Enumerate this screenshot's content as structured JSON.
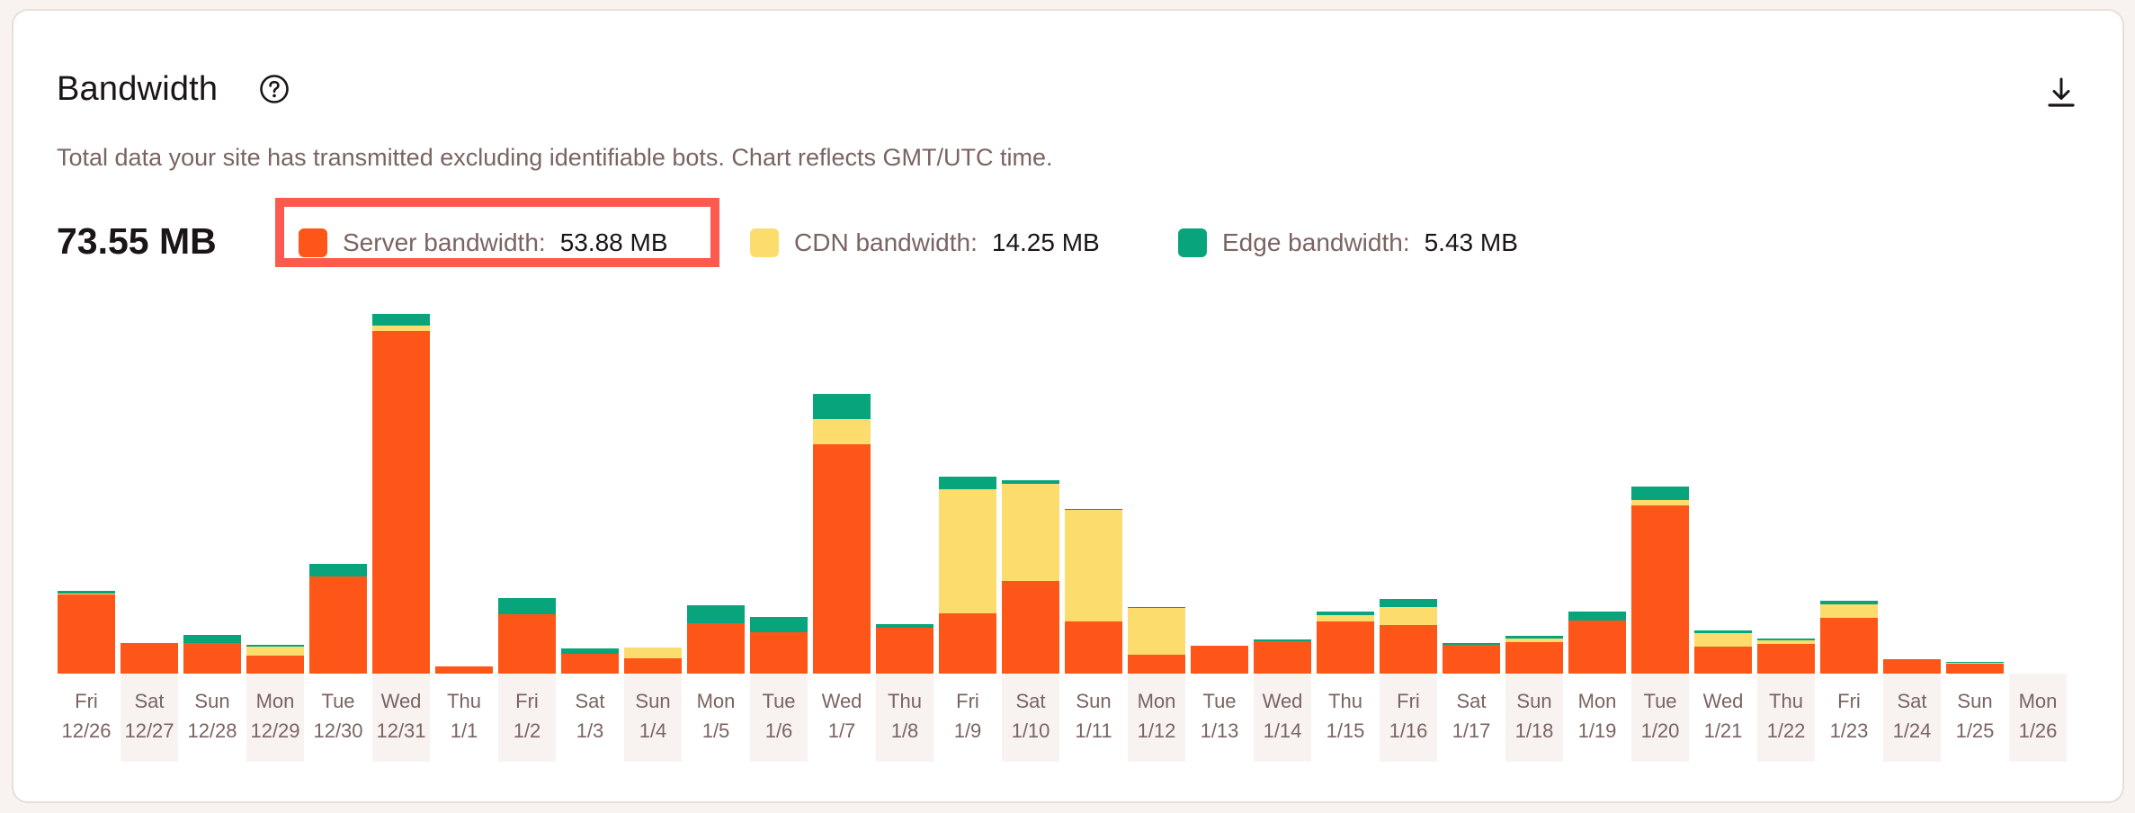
{
  "card": {
    "title": "Bandwidth",
    "help_icon": "question-circle-icon",
    "download_icon": "download-icon",
    "subtitle": "Total data your site has transmitted excluding identifiable bots. Chart reflects GMT/UTC time.",
    "total": "73.55 MB"
  },
  "legend": [
    {
      "label": "Server bandwidth:",
      "value": "53.88 MB",
      "color": "#fe5618",
      "highlighted": true
    },
    {
      "label": "CDN bandwidth:",
      "value": "14.25 MB",
      "color": "#fddc6e",
      "highlighted": false
    },
    {
      "label": "Edge bandwidth:",
      "value": "5.43 MB",
      "color": "#08a57c",
      "highlighted": false
    }
  ],
  "highlight_color": "#fd5a4f",
  "chart_data": {
    "type": "bar",
    "stacked": true,
    "title": "Bandwidth",
    "xlabel": "",
    "ylabel": "MB",
    "units": "MB",
    "grid": false,
    "legend_position": "top",
    "ylim": [
      0,
      10.5
    ],
    "categories": [
      "Fri 12/26",
      "Sat 12/27",
      "Sun 12/28",
      "Mon 12/29",
      "Tue 12/30",
      "Wed 12/31",
      "Thu 1/1",
      "Fri 1/2",
      "Sat 1/3",
      "Sun 1/4",
      "Mon 1/5",
      "Tue 1/6",
      "Wed 1/7",
      "Thu 1/8",
      "Fri 1/9",
      "Sat 1/10",
      "Sun 1/11",
      "Mon 1/12",
      "Tue 1/13",
      "Wed 1/14",
      "Thu 1/15",
      "Fri 1/16",
      "Sat 1/17",
      "Sun 1/18",
      "Mon 1/19",
      "Tue 1/20",
      "Wed 1/21",
      "Thu 1/22",
      "Fri 1/23",
      "Sat 1/24",
      "Sun 1/25",
      "Mon 1/26"
    ],
    "x_days": [
      "Fri",
      "Sat",
      "Sun",
      "Mon",
      "Tue",
      "Wed",
      "Thu",
      "Fri",
      "Sat",
      "Sun",
      "Mon",
      "Tue",
      "Wed",
      "Thu",
      "Fri",
      "Sat",
      "Sun",
      "Mon",
      "Tue",
      "Wed",
      "Thu",
      "Fri",
      "Sat",
      "Sun",
      "Mon",
      "Tue",
      "Wed",
      "Thu",
      "Fri",
      "Sat",
      "Sun",
      "Mon"
    ],
    "x_dates": [
      "12/26",
      "12/27",
      "12/28",
      "12/29",
      "12/30",
      "12/31",
      "1/1",
      "1/2",
      "1/3",
      "1/4",
      "1/5",
      "1/6",
      "1/7",
      "1/8",
      "1/9",
      "1/10",
      "1/11",
      "1/12",
      "1/13",
      "1/14",
      "1/15",
      "1/16",
      "1/17",
      "1/18",
      "1/19",
      "1/20",
      "1/21",
      "1/22",
      "1/23",
      "1/24",
      "1/25",
      "1/26"
    ],
    "series": [
      {
        "name": "Server bandwidth",
        "total": "53.88 MB",
        "color": "#fe5618",
        "values": [
          2.28,
          0.88,
          0.88,
          0.52,
          2.8,
          9.88,
          0.21,
          1.71,
          0.57,
          0.44,
          1.45,
          1.19,
          6.61,
          1.32,
          1.74,
          2.67,
          1.5,
          0.54,
          0.8,
          0.93,
          1.5,
          1.4,
          0.83,
          0.91,
          1.53,
          4.85,
          0.78,
          0.86,
          1.61,
          0.41,
          0.29,
          0
        ]
      },
      {
        "name": "CDN bandwidth",
        "total": "14.25 MB",
        "color": "#fddc6e",
        "values": [
          0.03,
          0,
          0,
          0.27,
          0,
          0.16,
          0,
          0,
          0,
          0.31,
          0,
          0,
          0.73,
          0,
          3.58,
          2.8,
          3.21,
          1.35,
          0,
          0,
          0.18,
          0.52,
          0,
          0.1,
          0,
          0.16,
          0.39,
          0.1,
          0.39,
          0,
          0.03,
          0
        ]
      },
      {
        "name": "Edge bandwidth",
        "total": "5.43 MB",
        "color": "#08a57c",
        "values": [
          0.08,
          0,
          0.23,
          0.05,
          0.36,
          0.34,
          0,
          0.47,
          0.16,
          0,
          0.52,
          0.44,
          0.73,
          0.1,
          0.36,
          0.1,
          0.03,
          0.03,
          0,
          0.05,
          0.1,
          0.23,
          0.05,
          0.08,
          0.26,
          0.39,
          0.08,
          0.05,
          0.1,
          0,
          0.03,
          0
        ]
      }
    ]
  }
}
